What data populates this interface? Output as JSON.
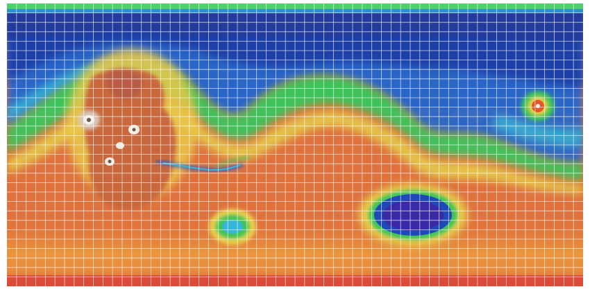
{
  "map": {
    "kind": "global topographic elevation map",
    "projection": "equirectangular",
    "grid": {
      "visible": true,
      "line_color": "#ffffff",
      "columns": 60,
      "rows": 30
    },
    "color_scale": {
      "lowest": "#3a2aa8",
      "low": "#1d4fbf",
      "mid_low": "#2fa8d8",
      "mid": "#3fc95a",
      "mid_high": "#e8d44a",
      "high": "#e0582c",
      "highest": "#b8603c",
      "peak": "#f2f2f2"
    },
    "features": [
      {
        "name": "highland-plateau-icon"
      },
      {
        "name": "large-volcano-icon"
      },
      {
        "name": "canyon-system-icon"
      },
      {
        "name": "impact-basin-icon"
      },
      {
        "name": "small-basin-icon"
      },
      {
        "name": "isolated-volcano-icon"
      },
      {
        "name": "northern-lowlands-icon"
      },
      {
        "name": "polar-region-icon"
      }
    ]
  }
}
